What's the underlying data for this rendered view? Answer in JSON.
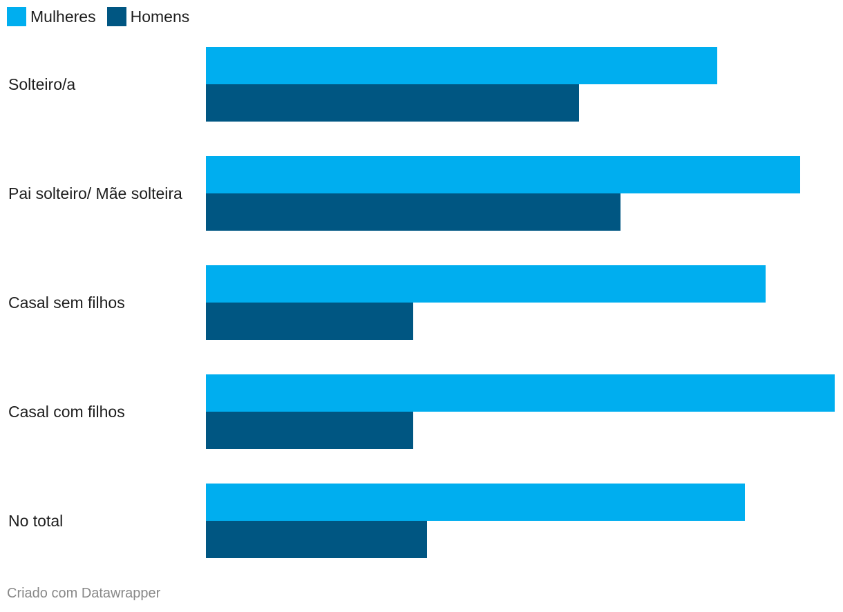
{
  "chart_data": {
    "type": "bar",
    "orientation": "horizontal",
    "categories": [
      "Solteiro/a",
      "Pai solteiro/ Mãe solteira",
      "Casal sem filhos",
      "Casal com filhos",
      "No total"
    ],
    "series": [
      {
        "name": "Mulheres",
        "color": "#00aeef",
        "values": [
          37,
          43,
          40.5,
          45.5,
          39
        ]
      },
      {
        "name": "Homens",
        "color": "#005682",
        "values": [
          27,
          30,
          15,
          15,
          16
        ]
      }
    ],
    "xlim": [
      0,
      45.5
    ],
    "grid": false,
    "legend_position": "top-left"
  },
  "footer": {
    "credit": "Criado com Datawrapper"
  }
}
